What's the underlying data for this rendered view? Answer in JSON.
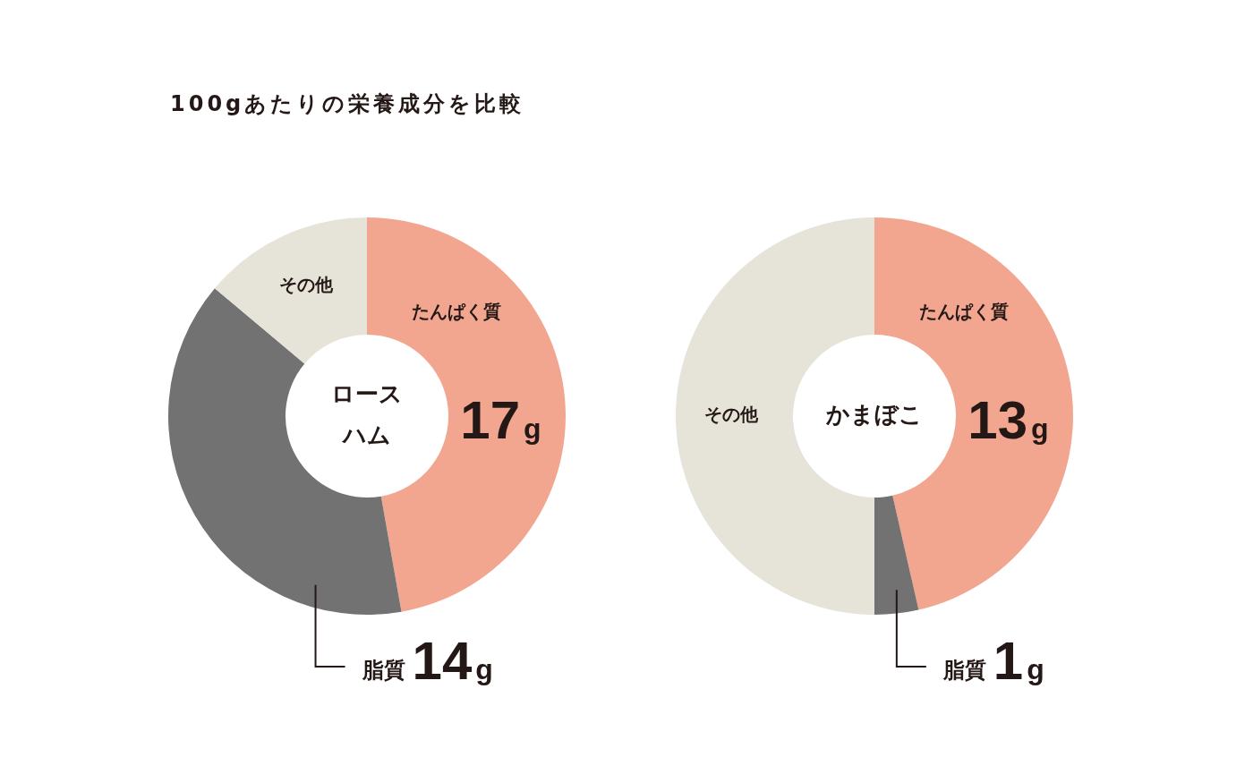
{
  "chart_data": [
    {
      "type": "donut",
      "title": "ロースハム",
      "annotations": [
        "100gあたりの栄養成分を比較"
      ],
      "categories": [
        "たんぱく質",
        "脂質",
        "その他"
      ],
      "values": [
        17,
        14,
        5
      ],
      "colors": [
        "#f2a68f",
        "#727272",
        "#e6e3d8"
      ],
      "value_labels": [
        "17g",
        "14g",
        null
      ],
      "legend": false
    },
    {
      "type": "donut",
      "title": "かまぼこ",
      "categories": [
        "たんぱく質",
        "脂質",
        "その他"
      ],
      "values": [
        13,
        1,
        14
      ],
      "colors": [
        "#f2a68f",
        "#727272",
        "#e6e3d8"
      ],
      "value_labels": [
        "13g",
        "1g",
        null
      ],
      "legend": false
    }
  ]
}
